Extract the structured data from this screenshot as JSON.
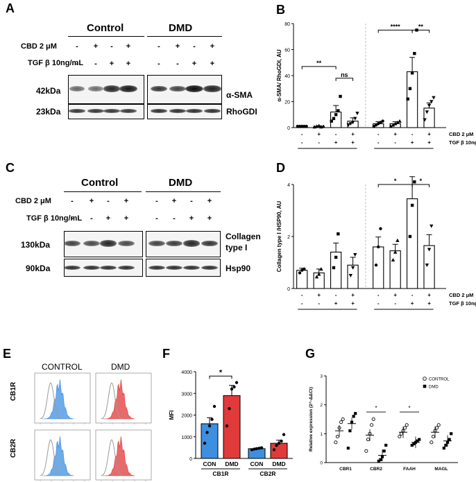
{
  "panels": {
    "A": "A",
    "B": "B",
    "C": "C",
    "D": "D",
    "E": "E",
    "F": "F",
    "G": "G"
  },
  "panel_A": {
    "groups": [
      "Control",
      "DMD"
    ],
    "cbd_label": "CBD 2 μM",
    "tgf_label": "TGF β 10ng/mL",
    "cbd_signs": [
      "-",
      "+",
      "-",
      "+",
      "-",
      "+",
      "-",
      "+"
    ],
    "tgf_signs": [
      "-",
      "-",
      "+",
      "+",
      "-",
      "-",
      "+",
      "+"
    ],
    "rows": [
      {
        "kda": "42kDa",
        "protein": "α-SMA",
        "band_intensity": [
          0.35,
          0.3,
          0.8,
          0.9,
          0.7,
          0.6,
          1.0,
          0.85
        ]
      },
      {
        "kda": "23kDa",
        "protein": "RhoGDI",
        "band_intensity": [
          0.7,
          0.7,
          0.7,
          0.7,
          0.75,
          0.75,
          0.75,
          0.75
        ]
      }
    ]
  },
  "panel_C": {
    "groups": [
      "Control",
      "DMD"
    ],
    "cbd_label": "CBD 2 μM",
    "tgf_label": "TGF β 10ng/mL",
    "cbd_signs": [
      "-",
      "+",
      "-",
      "+",
      "-",
      "+",
      "-",
      "+"
    ],
    "tgf_signs": [
      "-",
      "-",
      "+",
      "+",
      "-",
      "-",
      "+",
      "+"
    ],
    "rows": [
      {
        "kda": "130kDa",
        "protein_line1": "Collagen",
        "protein_line2": "type I",
        "band_intensity": [
          0.6,
          0.55,
          0.8,
          0.55,
          0.6,
          0.65,
          0.8,
          0.7
        ]
      },
      {
        "kda": "90kDa",
        "protein": "Hsp90",
        "band_intensity": [
          0.75,
          0.75,
          0.75,
          0.75,
          0.75,
          0.75,
          0.75,
          0.75
        ]
      }
    ]
  },
  "panel_E": {
    "col_labels": [
      "CONTROL",
      "DMD"
    ],
    "row_labels": [
      "CB1R",
      "CB2R"
    ],
    "colors": {
      "control": "#3d8fe0",
      "dmd": "#e03a3a",
      "isotype": "#9a9a9a"
    }
  },
  "chart_data": [
    {
      "panel": "B",
      "type": "bar",
      "ylabel": "α-SMA/ RhoGDI, AU",
      "ylim": [
        0,
        80
      ],
      "yticks": [
        0,
        20,
        40,
        60,
        80
      ],
      "categories": [
        "Control -/-",
        "Control +/-",
        "Control -/+",
        "Control +/+",
        "DMD -/-",
        "DMD +/-",
        "DMD -/+",
        "DMD +/+"
      ],
      "values": [
        1,
        1,
        12,
        5,
        3,
        3,
        43,
        15
      ],
      "errors": [
        0.3,
        0.4,
        5,
        2.5,
        1.5,
        1.5,
        11,
        4
      ],
      "points": [
        [
          1,
          1,
          1,
          1,
          1
        ],
        [
          0.5,
          1,
          1.5,
          0.5,
          1
        ],
        [
          5,
          7,
          10,
          13,
          24
        ],
        [
          2,
          3,
          4,
          7,
          11
        ],
        [
          1,
          2,
          3,
          4,
          5
        ],
        [
          1,
          2,
          3,
          4,
          5
        ],
        [
          22,
          30,
          42,
          57,
          75
        ],
        [
          6,
          12,
          17,
          20,
          23
        ]
      ],
      "markers": [
        "circle",
        "triangle",
        "square",
        "triangle-down",
        "circle",
        "triangle",
        "square",
        "triangle-down"
      ],
      "cbd_label": "CBD 2 μM",
      "tgf_label": "TGF β 10ng/mL",
      "cbd_signs": [
        "-",
        "+",
        "-",
        "+",
        "-",
        "+",
        "-",
        "+"
      ],
      "tgf_signs": [
        "-",
        "-",
        "+",
        "+",
        "-",
        "-",
        "+",
        "+"
      ],
      "group_labels": [
        "Control",
        "DMD"
      ],
      "significance": [
        {
          "from": 0,
          "to": 2,
          "label": "**",
          "y": 47
        },
        {
          "from": 2,
          "to": 3,
          "label": "ns",
          "y": 38
        },
        {
          "from": 4,
          "to": 6,
          "label": "****",
          "y": 75
        },
        {
          "from": 6,
          "to": 7,
          "label": "**",
          "y": 75
        }
      ]
    },
    {
      "panel": "D",
      "type": "bar",
      "ylabel": "Collagen type I /HSP90, AU",
      "ylim": [
        0,
        4
      ],
      "yticks": [
        0,
        2,
        4
      ],
      "categories": [
        "Control -/-",
        "Control +/-",
        "Control -/+",
        "Control +/+",
        "DMD -/-",
        "DMD +/-",
        "DMD -/+",
        "DMD +/+"
      ],
      "values": [
        0.7,
        0.6,
        1.4,
        0.9,
        1.6,
        1.45,
        3.45,
        1.65
      ],
      "errors": [
        0.08,
        0.15,
        0.35,
        0.3,
        0.38,
        0.25,
        0.85,
        0.42
      ],
      "points": [
        [
          0.6,
          0.7,
          0.75
        ],
        [
          0.45,
          0.55,
          0.75
        ],
        [
          0.8,
          1.2,
          2.1
        ],
        [
          0.5,
          0.8,
          1.3
        ],
        [
          0.9,
          1.6,
          2.3
        ],
        [
          1.1,
          1.4,
          1.85
        ],
        [
          2.0,
          3.2,
          4.1
        ],
        [
          0.9,
          1.5,
          2.4
        ]
      ],
      "markers": [
        "circle",
        "triangle",
        "square",
        "triangle-down",
        "circle",
        "triangle",
        "square",
        "triangle-down"
      ],
      "cbd_label": "CBD 2 μM",
      "tgf_label": "TGF β 10ng/mL",
      "cbd_signs": [
        "-",
        "+",
        "-",
        "+",
        "-",
        "+",
        "-",
        "+"
      ],
      "tgf_signs": [
        "-",
        "-",
        "+",
        "+",
        "-",
        "-",
        "+",
        "+"
      ],
      "group_labels": [
        "Control",
        "DMD"
      ],
      "significance": [
        {
          "from": 4,
          "to": 6,
          "label": "*",
          "y": 4.0
        },
        {
          "from": 6,
          "to": 7,
          "label": "*",
          "y": 4.0
        }
      ]
    },
    {
      "panel": "F",
      "type": "bar",
      "ylabel": "MFI",
      "ylim": [
        0,
        4000
      ],
      "yticks": [
        0,
        1000,
        2000,
        3000,
        4000
      ],
      "categories": [
        "CON",
        "DMD",
        "CON",
        "DMD"
      ],
      "groups": [
        "CB1R",
        "CB2R"
      ],
      "values": [
        1600,
        2900,
        450,
        700
      ],
      "errors": [
        280,
        470,
        30,
        140
      ],
      "colors": [
        "#3d8fe0",
        "#e03a3a",
        "#3d8fe0",
        "#e03a3a"
      ],
      "points": [
        [
          700,
          1200,
          1500,
          1800,
          2400
        ],
        [
          1500,
          2300,
          3200,
          3300,
          3500
        ],
        [
          400,
          430,
          450,
          470,
          490
        ],
        [
          400,
          600,
          700,
          800,
          1100
        ]
      ],
      "significance": [
        {
          "from": 0,
          "to": 1,
          "label": "*",
          "y": 3800
        }
      ]
    },
    {
      "panel": "G",
      "type": "scatter",
      "ylabel": "Relative expression (2^-ΔΔCt)",
      "ylim": [
        0,
        3
      ],
      "yticks": [
        0,
        1,
        2,
        3
      ],
      "categories": [
        "CBR1",
        "CBR2",
        "FAAH",
        "MAGL"
      ],
      "legend": {
        "position": "top-right",
        "entries": [
          "CONTROL",
          "DMD"
        ]
      },
      "series": [
        {
          "name": "CONTROL",
          "marker": "open-circle",
          "means": [
            1.1,
            0.95,
            1.05,
            1.05
          ],
          "points": [
            [
              0.7,
              0.9,
              1.2,
              1.4,
              1.5
            ],
            [
              0.4,
              0.8,
              1.0,
              1.3,
              1.5
            ],
            [
              0.9,
              1.0,
              1.1,
              1.2,
              1.3
            ],
            [
              0.7,
              0.9,
              1.1,
              1.2,
              1.3
            ]
          ]
        },
        {
          "name": "DMD",
          "marker": "filled-square",
          "means": [
            1.35,
            0.25,
            0.7,
            0.75
          ],
          "points": [
            [
              0.5,
              1.1,
              1.4,
              1.6,
              1.7
            ],
            [
              0.05,
              0.1,
              0.2,
              0.4,
              0.6
            ],
            [
              0.6,
              0.65,
              0.7,
              0.75,
              0.8
            ],
            [
              0.5,
              0.6,
              0.7,
              0.8,
              1.0
            ]
          ]
        }
      ],
      "significance": [
        {
          "cat": 1,
          "label": "*",
          "y": 1.75
        },
        {
          "cat": 2,
          "label": "*",
          "y": 1.75
        }
      ]
    }
  ]
}
